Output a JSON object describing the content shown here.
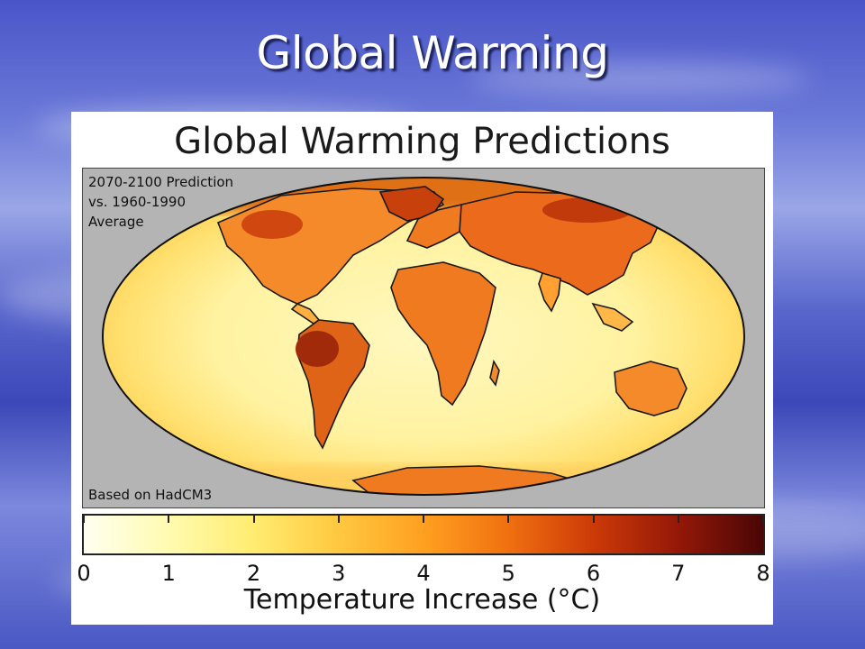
{
  "slide": {
    "title": "Global Warming"
  },
  "figure": {
    "title": "Global Warming Predictions",
    "prediction_note": [
      "2070-2100 Prediction",
      "vs. 1960-1990",
      "Average"
    ],
    "source_note": "Based on HadCM3"
  },
  "colorbar": {
    "label": "Temperature Increase (°C)",
    "range": [
      0,
      8
    ],
    "ticks": [
      "0",
      "1",
      "2",
      "3",
      "4",
      "5",
      "6",
      "7",
      "8"
    ],
    "stops": [
      {
        "value": 0,
        "color": "#fffff0"
      },
      {
        "value": 1,
        "color": "#fffbb0"
      },
      {
        "value": 2,
        "color": "#ffec70"
      },
      {
        "value": 3,
        "color": "#ffc840"
      },
      {
        "value": 4,
        "color": "#ffa020"
      },
      {
        "value": 5,
        "color": "#f07010"
      },
      {
        "value": 6,
        "color": "#cc3a08"
      },
      {
        "value": 7,
        "color": "#941808"
      },
      {
        "value": 8,
        "color": "#4a0606"
      }
    ]
  },
  "colors": {
    "ocean_low": "#fff6b0",
    "land_mid": "#ffb040",
    "land_high": "#e05a10",
    "hotspot": "#a82a0a",
    "panel_bg": "#b4b4b4"
  }
}
